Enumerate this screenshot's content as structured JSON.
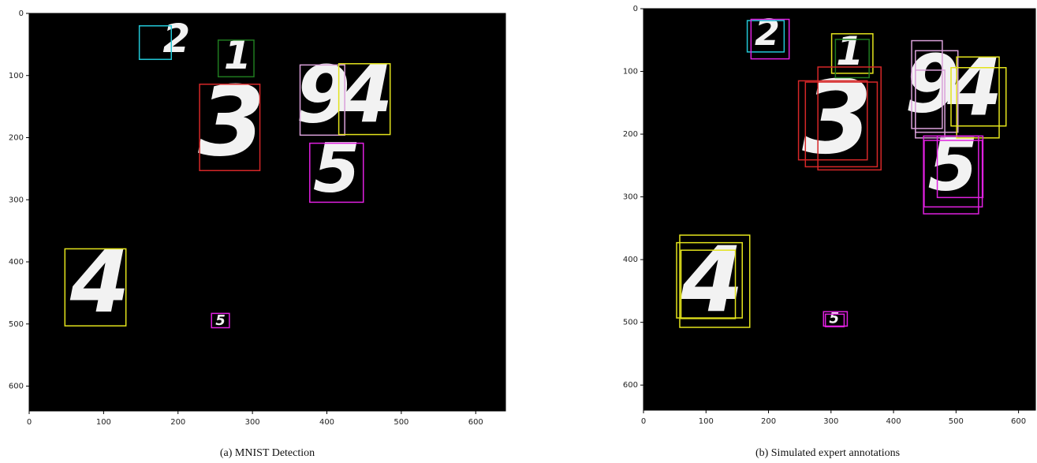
{
  "panels": [
    {
      "caption": "(a) MNIST Detection",
      "xlim": [
        0,
        640
      ],
      "ylim": [
        0,
        640
      ],
      "xticks": [
        0,
        100,
        200,
        300,
        400,
        500,
        600
      ],
      "yticks": [
        0,
        100,
        200,
        300,
        400,
        500,
        600
      ],
      "boxes": [
        {
          "color": "#22c7d6",
          "coords": [
            148,
            20,
            191,
            74
          ]
        },
        {
          "color": "#1f7a1f",
          "coords": [
            254,
            43,
            302,
            102
          ]
        },
        {
          "color": "#d62728",
          "coords": [
            229,
            114,
            310,
            253
          ]
        },
        {
          "color": "#d9a0d9",
          "coords": [
            364,
            83,
            424,
            196
          ]
        },
        {
          "color": "#e3e31c",
          "coords": [
            416,
            81,
            485,
            195
          ]
        },
        {
          "color": "#e020e0",
          "coords": [
            377,
            209,
            449,
            304
          ]
        },
        {
          "color": "#e3e31c",
          "coords": [
            48,
            379,
            130,
            503
          ]
        },
        {
          "color": "#e020e0",
          "coords": [
            245,
            483,
            269,
            506
          ]
        }
      ],
      "digits": [
        {
          "text": "2",
          "x": 198,
          "y": 45,
          "size": 55
        },
        {
          "text": "1",
          "x": 280,
          "y": 72,
          "size": 55
        },
        {
          "text": "3",
          "x": 272,
          "y": 185,
          "size": 135
        },
        {
          "text": "9",
          "x": 395,
          "y": 140,
          "size": 110
        },
        {
          "text": "4",
          "x": 452,
          "y": 140,
          "size": 110
        },
        {
          "text": "5",
          "x": 413,
          "y": 257,
          "size": 95
        },
        {
          "text": "4",
          "x": 95,
          "y": 442,
          "size": 120
        },
        {
          "text": "5",
          "x": 257,
          "y": 495,
          "size": 20
        }
      ]
    },
    {
      "caption": "(b) Simulated expert annotations",
      "xlim": [
        0,
        627
      ],
      "ylim": [
        0,
        640
      ],
      "xticks": [
        0,
        100,
        200,
        300,
        400,
        500,
        600
      ],
      "yticks": [
        0,
        100,
        200,
        300,
        400,
        500,
        600
      ],
      "boxes": [
        {
          "color": "#22c7d6",
          "coords": [
            166,
            19,
            225,
            69
          ]
        },
        {
          "color": "#e020e0",
          "coords": [
            172,
            17,
            233,
            80
          ]
        },
        {
          "color": "#e3e31c",
          "coords": [
            301,
            40,
            367,
            103
          ]
        },
        {
          "color": "#1f7a1f",
          "coords": [
            307,
            49,
            361,
            110
          ]
        },
        {
          "color": "#d62728",
          "coords": [
            248,
            115,
            358,
            241
          ]
        },
        {
          "color": "#d62728",
          "coords": [
            259,
            117,
            374,
            252
          ]
        },
        {
          "color": "#d62728",
          "coords": [
            279,
            93,
            380,
            257
          ]
        },
        {
          "color": "#d9a0d9",
          "coords": [
            429,
            51,
            478,
            191
          ]
        },
        {
          "color": "#d9a0d9",
          "coords": [
            435,
            67,
            503,
            197
          ]
        },
        {
          "color": "#d9a0d9",
          "coords": [
            435,
            98,
            482,
            206
          ]
        },
        {
          "color": "#e3e31c",
          "coords": [
            492,
            94,
            580,
            187
          ]
        },
        {
          "color": "#e3e31c",
          "coords": [
            501,
            77,
            569,
            206
          ]
        },
        {
          "color": "#e020e0",
          "coords": [
            448,
            203,
            536,
            327
          ]
        },
        {
          "color": "#e020e0",
          "coords": [
            449,
            210,
            542,
            316
          ]
        },
        {
          "color": "#e020e0",
          "coords": [
            470,
            203,
            543,
            301
          ]
        },
        {
          "color": "#e3e31c",
          "coords": [
            53,
            373,
            158,
            493
          ]
        },
        {
          "color": "#e3e31c",
          "coords": [
            58,
            361,
            170,
            508
          ]
        },
        {
          "color": "#e3e31c",
          "coords": [
            60,
            385,
            147,
            494
          ]
        },
        {
          "color": "#e020e0",
          "coords": [
            288,
            483,
            326,
            506
          ]
        },
        {
          "color": "#e020e0",
          "coords": [
            291,
            487,
            321,
            507
          ]
        }
      ],
      "digits": [
        {
          "text": "2",
          "x": 198,
          "y": 42,
          "size": 50
        },
        {
          "text": "1",
          "x": 330,
          "y": 72,
          "size": 55
        },
        {
          "text": "3",
          "x": 310,
          "y": 185,
          "size": 140
        },
        {
          "text": "9",
          "x": 462,
          "y": 130,
          "size": 110
        },
        {
          "text": "4",
          "x": 530,
          "y": 135,
          "size": 110
        },
        {
          "text": "5",
          "x": 495,
          "y": 257,
          "size": 100
        },
        {
          "text": "4",
          "x": 110,
          "y": 442,
          "size": 125
        },
        {
          "text": "5",
          "x": 305,
          "y": 495,
          "size": 20
        }
      ]
    }
  ]
}
